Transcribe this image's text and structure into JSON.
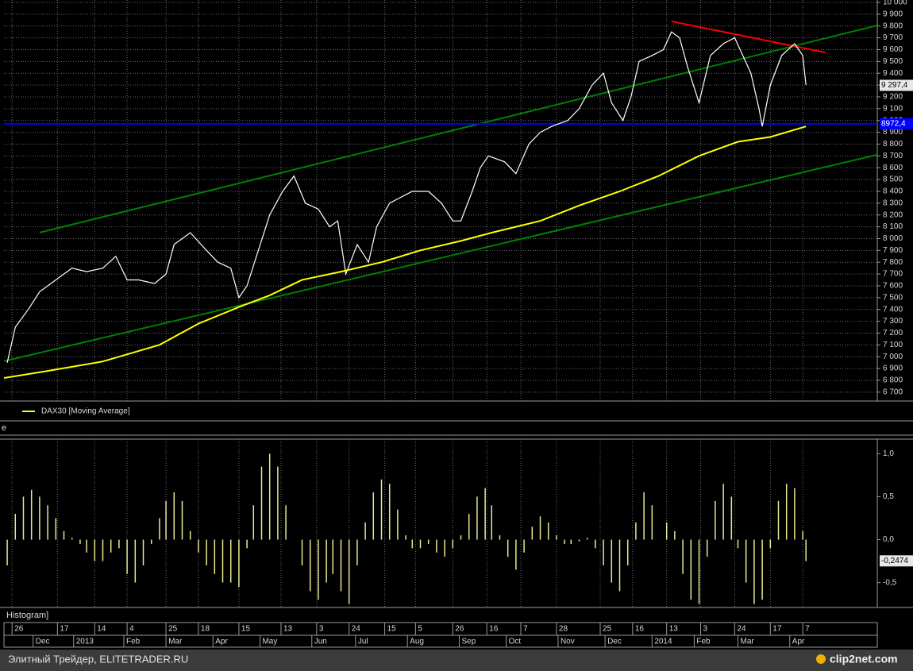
{
  "chart_data": [
    {
      "type": "line",
      "xlim": [
        0,
        539
      ],
      "ylim": [
        6625,
        10020
      ],
      "grid": true,
      "yticks": [
        {
          "value": 6700,
          "label": "6 700"
        },
        {
          "value": 6800,
          "label": "6 800"
        },
        {
          "value": 6900,
          "label": "6 900"
        },
        {
          "value": 7000,
          "label": "7 000"
        },
        {
          "value": 7100,
          "label": "7 100"
        },
        {
          "value": 7200,
          "label": "7 200"
        },
        {
          "value": 7300,
          "label": "7 300"
        },
        {
          "value": 7400,
          "label": "7 400"
        },
        {
          "value": 7500,
          "label": "7 500"
        },
        {
          "value": 7600,
          "label": "7 600"
        },
        {
          "value": 7700,
          "label": "7 700"
        },
        {
          "value": 7800,
          "label": "7 800"
        },
        {
          "value": 7900,
          "label": "7 900"
        },
        {
          "value": 8000,
          "label": "8 000"
        },
        {
          "value": 8100,
          "label": "8 100"
        },
        {
          "value": 8200,
          "label": "8 200"
        },
        {
          "value": 8300,
          "label": "8 300"
        },
        {
          "value": 8400,
          "label": "8 400"
        },
        {
          "value": 8500,
          "label": "8 500"
        },
        {
          "value": 8600,
          "label": "8 600"
        },
        {
          "value": 8700,
          "label": "8 700"
        },
        {
          "value": 8800,
          "label": "8 800"
        },
        {
          "value": 8900,
          "label": "8 900"
        },
        {
          "value": 9000,
          "label": "9 000"
        },
        {
          "value": 9100,
          "label": "9 100"
        },
        {
          "value": 9200,
          "label": "9 200"
        },
        {
          "value": 9300,
          "label": "9 300"
        },
        {
          "value": 9400,
          "label": "9 400"
        },
        {
          "value": 9500,
          "label": "9 500"
        },
        {
          "value": 9600,
          "label": "9 600"
        },
        {
          "value": 9700,
          "label": "9 700"
        },
        {
          "value": 9800,
          "label": "9 800"
        },
        {
          "value": 9900,
          "label": "9 900"
        },
        {
          "value": 10000,
          "label": "10 000"
        }
      ],
      "xticks": [
        5,
        33,
        56,
        76,
        100,
        120,
        145,
        171,
        193,
        213,
        235,
        254,
        277,
        298,
        319,
        341,
        368,
        388,
        409,
        430,
        451,
        473,
        493
      ],
      "xtick_labels": [
        "26",
        "17",
        "14",
        "4",
        "25",
        "18",
        "15",
        "13",
        "3",
        "24",
        "15",
        "5",
        "26",
        "16",
        "7",
        "28",
        "25",
        "16",
        "13",
        "3",
        "24",
        "17",
        "7"
      ],
      "month_ticks": [
        18,
        43,
        74,
        100,
        129,
        158,
        190,
        217,
        249,
        281,
        310,
        342,
        371,
        400,
        426,
        453,
        485
      ],
      "month_labels": [
        "Dec",
        "2013",
        "Feb",
        "Mar",
        "Apr",
        "May",
        "Jun",
        "Jul",
        "Aug",
        "Sep",
        "Oct",
        "Nov",
        "Dec",
        "2014",
        "Feb",
        "Mar",
        "Apr"
      ],
      "series": [
        {
          "color": "#ffffff",
          "x": [
            2,
            7,
            15,
            22,
            32,
            42,
            51,
            61,
            69,
            76,
            83,
            93,
            100,
            105,
            115,
            125,
            132,
            140,
            145,
            150,
            157,
            164,
            172,
            179,
            186,
            194,
            201,
            206,
            211,
            218,
            225,
            230,
            238,
            245,
            252,
            262,
            270,
            277,
            282,
            289,
            294,
            299,
            309,
            316,
            324,
            331,
            338,
            348,
            355,
            363,
            370,
            375,
            382,
            387,
            392,
            400,
            407,
            412,
            417,
            422,
            429,
            436,
            444,
            451,
            456,
            461,
            466,
            468,
            473,
            480,
            488,
            493,
            495
          ],
          "values": [
            6950,
            7250,
            7400,
            7550,
            7650,
            7750,
            7720,
            7750,
            7850,
            7650,
            7650,
            7620,
            7700,
            7950,
            8050,
            7900,
            7800,
            7750,
            7500,
            7600,
            7900,
            8200,
            8400,
            8530,
            8300,
            8250,
            8100,
            8150,
            7700,
            7950,
            7800,
            8100,
            8300,
            8350,
            8400,
            8400,
            8300,
            8150,
            8150,
            8400,
            8600,
            8700,
            8650,
            8550,
            8800,
            8900,
            8950,
            9000,
            9100,
            9300,
            9400,
            9150,
            9000,
            9200,
            9500,
            9550,
            9600,
            9750,
            9700,
            9450,
            9150,
            9550,
            9650,
            9700,
            9550,
            9400,
            9100,
            8950,
            9300,
            9550,
            9650,
            9550,
            9300
          ]
        },
        {
          "name": "DAX30 [Moving Average]",
          "color": "#ffff00",
          "x": [
            0,
            27,
            61,
            96,
            120,
            145,
            164,
            184,
            208,
            233,
            257,
            282,
            301,
            331,
            355,
            380,
            404,
            429,
            453,
            473,
            495
          ],
          "values": [
            6820,
            6880,
            6960,
            7100,
            7280,
            7420,
            7520,
            7650,
            7720,
            7800,
            7900,
            7980,
            8050,
            8150,
            8280,
            8400,
            8530,
            8700,
            8820,
            8860,
            8950
          ]
        }
      ],
      "trendlines": [
        {
          "color": "#008000",
          "x": [
            22,
            539
          ],
          "values": [
            8051,
            9805
          ]
        },
        {
          "color": "#008000",
          "x": [
            0,
            539
          ],
          "values": [
            6962,
            8710
          ]
        },
        {
          "color": "#ff0000",
          "x": [
            412,
            507
          ],
          "values": [
            9839,
            9576
          ]
        }
      ],
      "hline": {
        "value": 8972.4,
        "label": "8972,4",
        "color": "#0000ff"
      },
      "last_label": {
        "value": 9297.4,
        "label": "9 297,4"
      }
    },
    {
      "type": "bar",
      "header": "e",
      "title": "Histogram]",
      "color": "#e8e890",
      "xlim": [
        0,
        539
      ],
      "ylim": [
        -0.79,
        1.17
      ],
      "yticks": [
        {
          "value": 1,
          "label": "1,0"
        },
        {
          "value": 0.5,
          "label": "0,5"
        },
        {
          "value": 0,
          "label": "0,0"
        },
        {
          "value": -0.5,
          "label": "-0,5"
        }
      ],
      "x": [
        2,
        7,
        12,
        17,
        22,
        27,
        32,
        37,
        42,
        47,
        51,
        56,
        61,
        66,
        71,
        76,
        81,
        86,
        91,
        96,
        100,
        105,
        110,
        115,
        120,
        125,
        130,
        135,
        140,
        145,
        150,
        154,
        159,
        164,
        169,
        174,
        179,
        184,
        189,
        194,
        199,
        203,
        208,
        213,
        218,
        223,
        228,
        233,
        238,
        243,
        248,
        252,
        257,
        262,
        267,
        272,
        277,
        282,
        287,
        292,
        297,
        301,
        306,
        311,
        316,
        321,
        326,
        331,
        336,
        341,
        346,
        350,
        355,
        360,
        365,
        370,
        375,
        380,
        385,
        390,
        395,
        400,
        404,
        409,
        414,
        419,
        424,
        429,
        434,
        439,
        444,
        449,
        453,
        458,
        463,
        468,
        473,
        478,
        483,
        488,
        493,
        495
      ],
      "values": [
        -0.3,
        0.3,
        0.5,
        0.58,
        0.5,
        0.4,
        0.25,
        0.1,
        0.02,
        -0.05,
        -0.15,
        -0.25,
        -0.25,
        -0.15,
        -0.1,
        -0.4,
        -0.5,
        -0.3,
        -0.05,
        0.25,
        0.45,
        0.55,
        0.45,
        0.1,
        -0.15,
        -0.3,
        -0.4,
        -0.5,
        -0.5,
        -0.55,
        -0.1,
        0.4,
        0.85,
        1,
        0.85,
        0.4,
        0,
        -0.3,
        -0.6,
        -0.7,
        -0.5,
        -0.4,
        -0.6,
        -0.75,
        -0.3,
        0.2,
        0.55,
        0.7,
        0.65,
        0.35,
        0.05,
        -0.1,
        -0.1,
        -0.05,
        -0.15,
        -0.2,
        -0.1,
        0.05,
        0.3,
        0.5,
        0.6,
        0.4,
        0.05,
        -0.2,
        -0.35,
        -0.15,
        0.15,
        0.27,
        0.2,
        0.05,
        -0.05,
        -0.05,
        -0.02,
        0.02,
        -0.1,
        -0.3,
        -0.5,
        -0.6,
        -0.3,
        0.2,
        0.55,
        0.4,
        0,
        0.2,
        0.1,
        -0.4,
        -0.7,
        -0.75,
        -0.2,
        0.45,
        0.65,
        0.5,
        -0.1,
        -0.5,
        -0.75,
        -0.7,
        -0.1,
        0.45,
        0.65,
        0.6,
        0.1,
        -0.25
      ],
      "last_label": {
        "value": -0.2474,
        "label": "-0,2474"
      }
    }
  ],
  "footer": {
    "caption": "Элитный Трейдер, ELITETRADER.RU",
    "logo": "clip2net.com"
  }
}
